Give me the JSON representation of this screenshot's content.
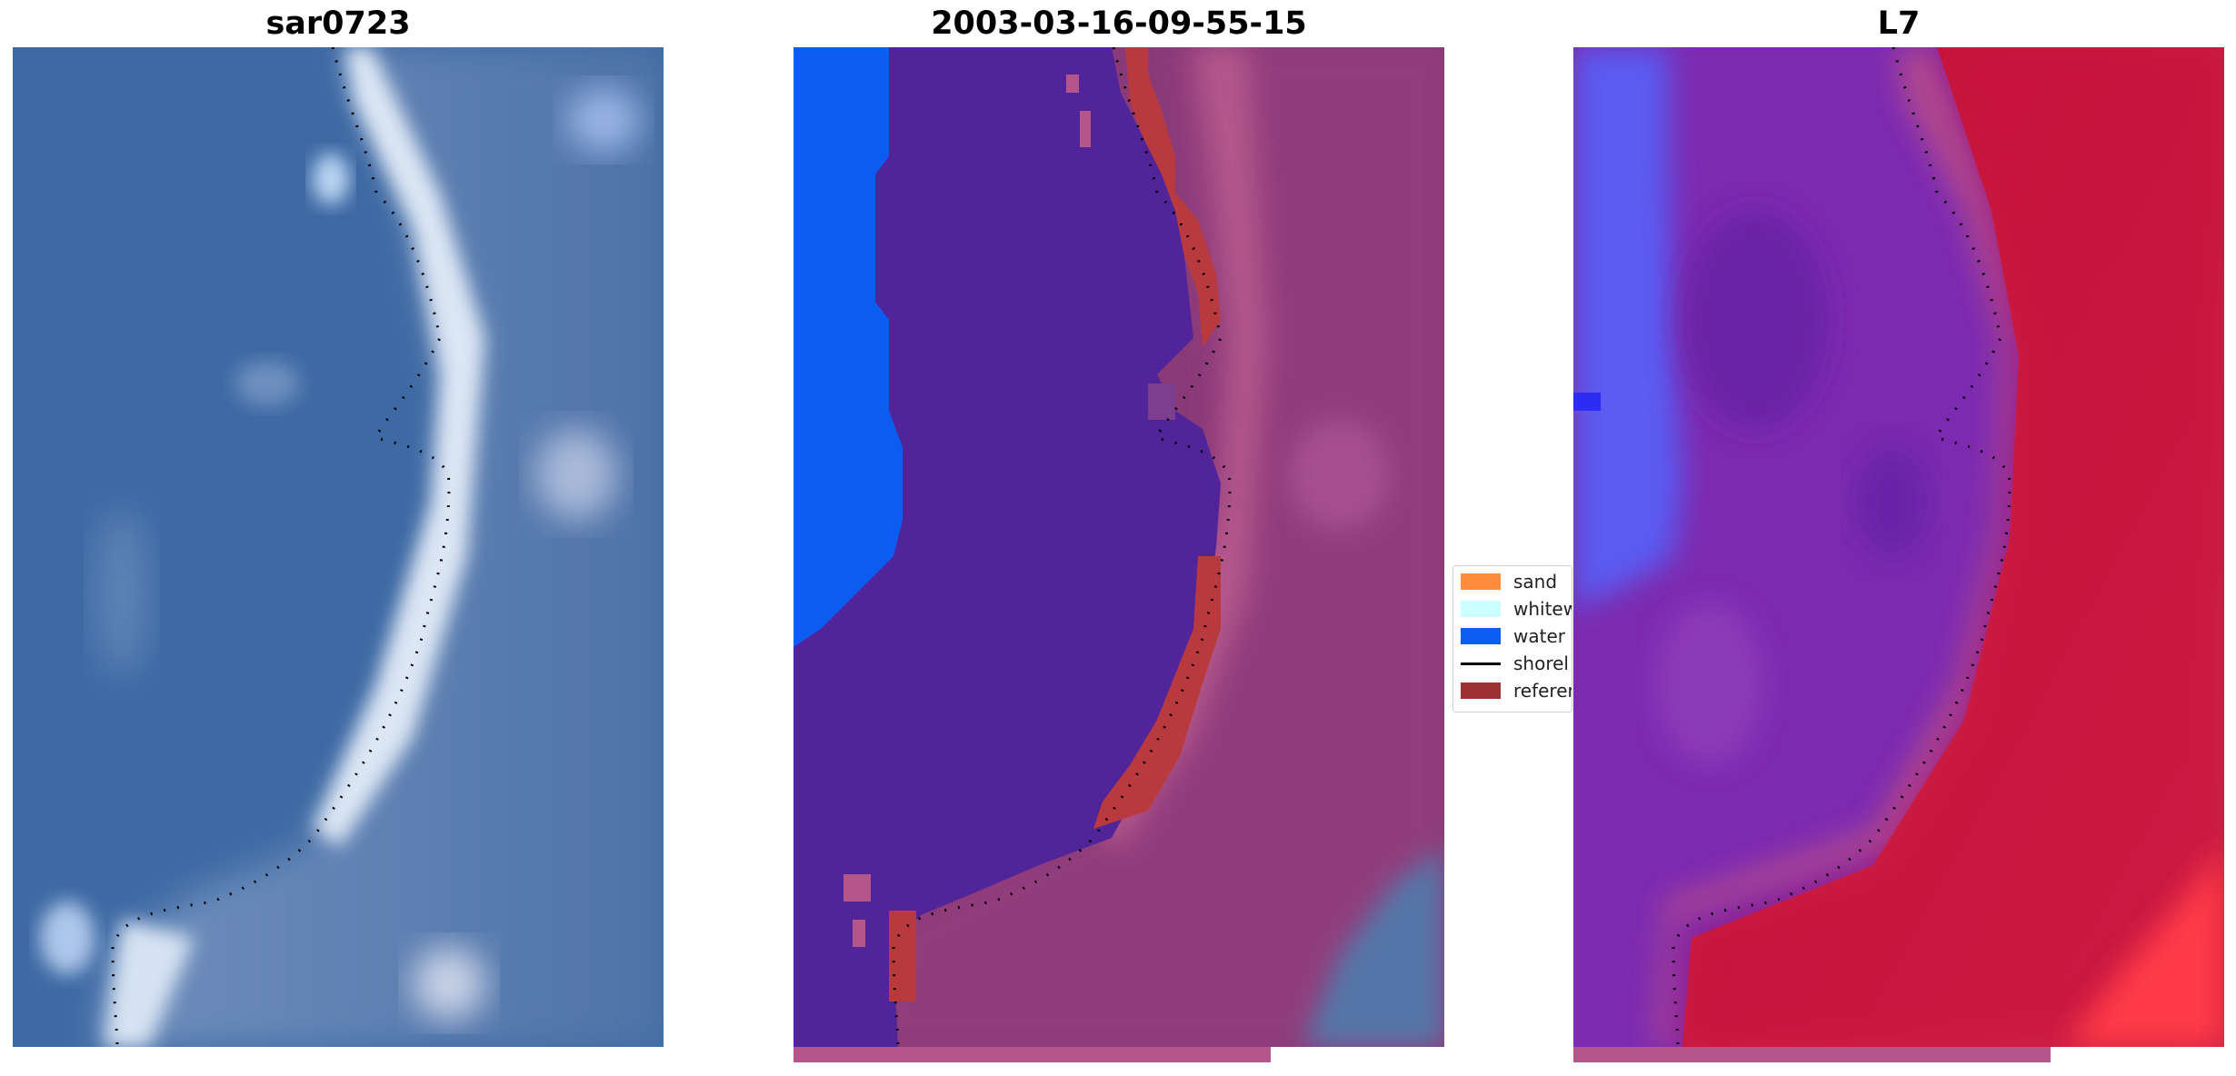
{
  "titles": {
    "left": "sar0723",
    "center": "2003-03-16-09-55-15",
    "right": "L7"
  },
  "legend": {
    "items": [
      {
        "label": "sand",
        "color": "#ff8c3a",
        "kind": "patch"
      },
      {
        "label": "whitew",
        "color": "#ccffff",
        "kind": "patch"
      },
      {
        "label": "water",
        "color": "#0b5cf0",
        "kind": "patch"
      },
      {
        "label": "shorel",
        "color": "#000000",
        "kind": "line"
      },
      {
        "label": "referen",
        "color": "#9e2f32",
        "kind": "patch"
      }
    ]
  },
  "colors": {
    "rgb_water": "#3f6ea8",
    "rgb_foam": "#d6e2f2",
    "rgb_land": "#6f8fb9",
    "class_water_shallow": "#52249a",
    "class_water_deep": "#0b5cf0",
    "class_land": "#8a3a78",
    "class_land_light": "#b4568c",
    "class_reference": "#b93a3e",
    "index_left": "#5a5cf2",
    "index_mid": "#7c2ab0",
    "index_right": "#c4113b",
    "index_bright": "#ff3b46"
  }
}
